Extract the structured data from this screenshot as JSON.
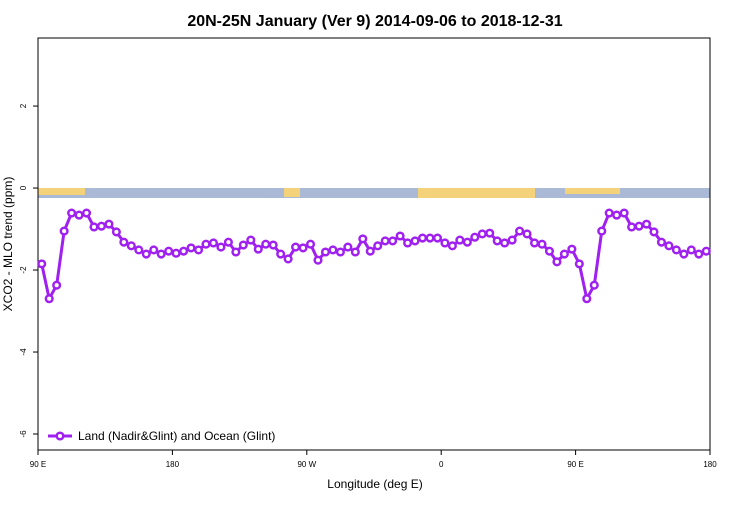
{
  "chart_data": {
    "type": "line",
    "title": "20N-25N January (Ver 9)   2014-09-06 to 2018-12-31",
    "x_label": "Longitude (deg E)",
    "y_label": "XCO2 - MLO trend (ppm)",
    "x": [
      92.5,
      97.5,
      102.5,
      107.5,
      112.5,
      117.5,
      122.5,
      127.5,
      132.5,
      137.5,
      142.5,
      147.5,
      152.5,
      157.5,
      162.5,
      167.5,
      172.5,
      177.5,
      182.5,
      187.5,
      192.5,
      197.5,
      202.5,
      207.5,
      212.5,
      217.5,
      222.5,
      227.5,
      232.5,
      237.5,
      242.5,
      247.5,
      252.5,
      257.5,
      262.5,
      267.5,
      272.5,
      277.5,
      282.5,
      287.5,
      292.5,
      297.5,
      302.5,
      307.5,
      312.5,
      317.5,
      322.5,
      327.5,
      332.5,
      337.5,
      342.5,
      347.5,
      352.5,
      357.5,
      362.5,
      367.5,
      372.5,
      377.5,
      382.5,
      387.5,
      392.5,
      397.5,
      402.5,
      407.5,
      412.5,
      417.5,
      422.5,
      427.5,
      432.5,
      437.5,
      442.5,
      447.5,
      452.5,
      457.5,
      462.5,
      467.5,
      472.5,
      477.5,
      482.5,
      487.5,
      492.5,
      497.5,
      502.5,
      507.5,
      512.5,
      517.5,
      522.5,
      527.5,
      532.5,
      537.5
    ],
    "series": [
      {
        "name": "Land (Nadir&Glint) and Ocean (Glint)",
        "color": "#a020f0",
        "values": [
          -1.85,
          -2.7,
          -2.37,
          -1.05,
          -0.61,
          -0.66,
          -0.61,
          -0.95,
          -0.93,
          -0.88,
          -1.07,
          -1.32,
          -1.41,
          -1.51,
          -1.61,
          -1.51,
          -1.61,
          -1.54,
          -1.59,
          -1.54,
          -1.46,
          -1.51,
          -1.37,
          -1.34,
          -1.44,
          -1.32,
          -1.56,
          -1.39,
          -1.27,
          -1.49,
          -1.37,
          -1.39,
          -1.61,
          -1.73,
          -1.44,
          -1.46,
          -1.37,
          -1.76,
          -1.56,
          -1.51,
          -1.56,
          -1.44,
          -1.56,
          -1.24,
          -1.54,
          -1.41,
          -1.29,
          -1.29,
          -1.17,
          -1.34,
          -1.29,
          -1.22,
          -1.22,
          -1.22,
          -1.34,
          -1.41,
          -1.27,
          -1.32,
          -1.2,
          -1.12,
          -1.1,
          -1.29,
          -1.34,
          -1.27,
          -1.05,
          -1.12,
          -1.34,
          -1.37,
          -1.54,
          -1.8,
          -1.61,
          -1.49,
          -1.85,
          -2.7,
          -2.37,
          -1.05,
          -0.61,
          -0.66,
          -0.61,
          -0.95,
          -0.93,
          -0.88,
          -1.07,
          -1.32,
          -1.41,
          -1.51,
          -1.61,
          -1.51,
          -1.61,
          -1.54
        ]
      }
    ],
    "xlim": [
      90,
      540
    ],
    "xticks": [
      {
        "value": 90,
        "label": "90 E"
      },
      180,
      {
        "value": 270,
        "label": "90 W"
      },
      {
        "value": 360,
        "label": "0"
      },
      {
        "value": 450,
        "label": "90 E"
      },
      {
        "value": 540,
        "label": "180"
      }
    ],
    "ylim": [
      -6.39,
      3.66
    ],
    "yticks": [
      -6,
      -4,
      -2,
      0,
      2
    ],
    "legend": "bottom-left"
  }
}
